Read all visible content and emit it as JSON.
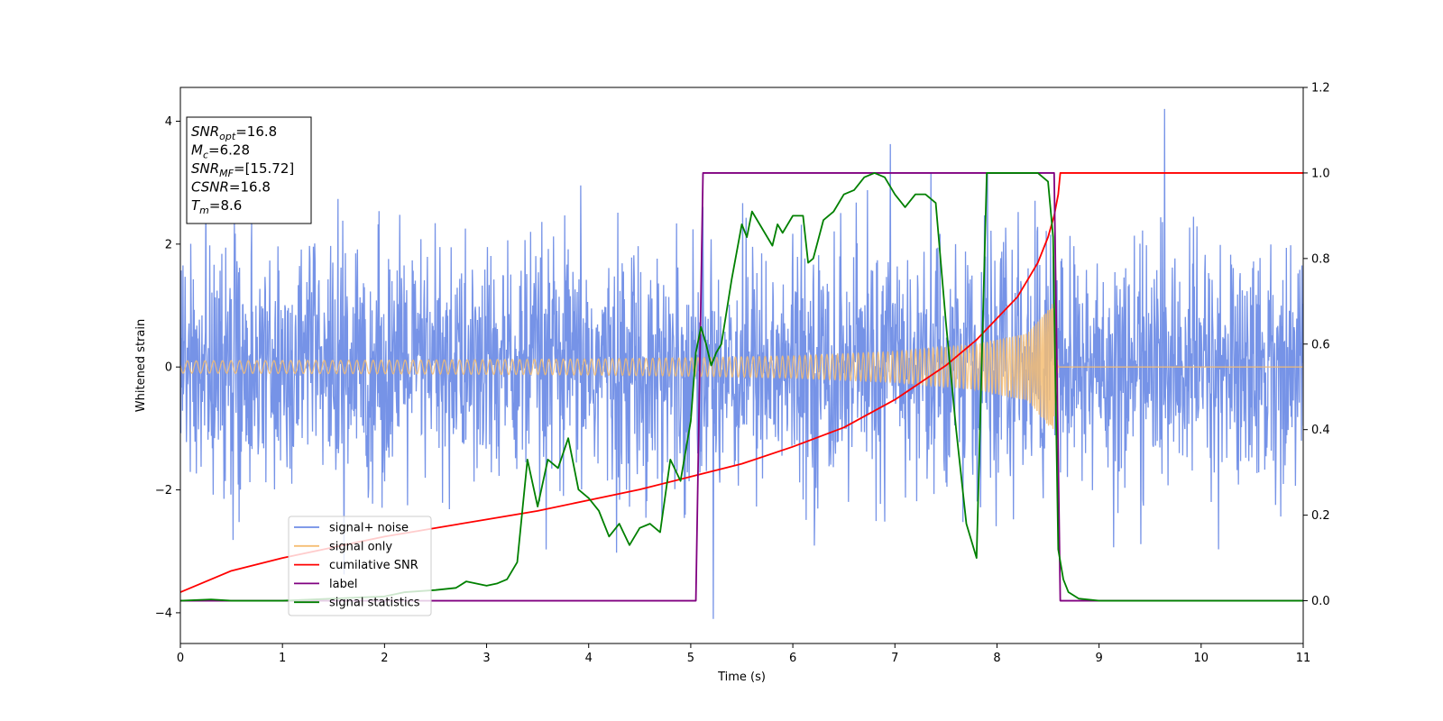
{
  "chart_data": {
    "type": "line",
    "title": "",
    "xlabel": "Time (s)",
    "ylabel": "Whitened strain",
    "y2label": "",
    "xlim": [
      0,
      11
    ],
    "ylim": [
      -4.5,
      4.55
    ],
    "y2lim": [
      -0.1,
      1.2
    ],
    "x_ticks": [
      0,
      1,
      2,
      3,
      4,
      5,
      6,
      7,
      8,
      9,
      10,
      11
    ],
    "y_ticks": [
      -4,
      -2,
      0,
      2,
      4
    ],
    "y2_ticks": [
      0.0,
      0.2,
      0.4,
      0.6,
      0.8,
      1.0,
      1.2
    ],
    "grid": false,
    "legend_position": "lower-left",
    "info_box": {
      "lines": [
        {
          "var": "SNR",
          "sub": "opt",
          "value": "=16.8"
        },
        {
          "var": "M",
          "sub": "c",
          "value": "=6.28"
        },
        {
          "var": "SNR",
          "sub": "MF",
          "value": "=[15.72]"
        },
        {
          "var": "CSNR",
          "sub": "",
          "value": "=16.8"
        },
        {
          "var": "T",
          "sub": "m",
          "value": "=8.6"
        }
      ]
    },
    "series": [
      {
        "name": "signal+ noise",
        "axis": "left",
        "color": "#6f8de6",
        "kind": "noisy",
        "description_points": "random noise, std ~1, spikes to about +/-4",
        "envelope_t": [
          0,
          2,
          4,
          5,
          6,
          7,
          7.8,
          8.3,
          8.55,
          8.6,
          11
        ],
        "envelope_amp": [
          0.1,
          0.11,
          0.13,
          0.15,
          0.18,
          0.25,
          0.37,
          0.55,
          0.9,
          0.0,
          0.0
        ]
      },
      {
        "name": "signal only",
        "axis": "left",
        "color": "#f5bd73",
        "kind": "chirp",
        "t_merge": 8.6,
        "envelope_t": [
          0,
          2,
          4,
          5,
          6,
          7,
          7.8,
          8.3,
          8.55,
          8.6,
          11
        ],
        "envelope_amp": [
          0.1,
          0.11,
          0.13,
          0.15,
          0.18,
          0.25,
          0.37,
          0.55,
          1.05,
          0.0,
          0.0
        ]
      },
      {
        "name": "cumilative SNR",
        "axis": "right",
        "color": "#ff0000",
        "x": [
          0,
          0.5,
          1,
          1.5,
          2,
          2.5,
          3,
          3.5,
          4,
          4.5,
          5,
          5.5,
          6,
          6.5,
          7,
          7.5,
          7.8,
          8.0,
          8.2,
          8.4,
          8.5,
          8.56,
          8.6,
          8.62,
          11
        ],
        "y": [
          0.02,
          0.07,
          0.1,
          0.125,
          0.15,
          0.17,
          0.19,
          0.21,
          0.235,
          0.26,
          0.29,
          0.32,
          0.36,
          0.405,
          0.47,
          0.55,
          0.61,
          0.66,
          0.71,
          0.79,
          0.85,
          0.9,
          0.95,
          1.0,
          1.0
        ]
      },
      {
        "name": "label",
        "axis": "right",
        "color": "#800080",
        "x": [
          0,
          5.05,
          5.12,
          8.56,
          8.62,
          11
        ],
        "y": [
          0.0,
          0.0,
          1.0,
          1.0,
          0.0,
          0.0
        ]
      },
      {
        "name": "signal statistics",
        "axis": "right",
        "color": "#008000",
        "x": [
          0,
          0.3,
          0.5,
          1.0,
          1.5,
          2.0,
          2.2,
          2.5,
          2.7,
          2.8,
          2.9,
          3.0,
          3.1,
          3.2,
          3.3,
          3.4,
          3.5,
          3.6,
          3.7,
          3.8,
          3.9,
          4.0,
          4.1,
          4.2,
          4.3,
          4.4,
          4.5,
          4.6,
          4.7,
          4.8,
          4.9,
          5.0,
          5.05,
          5.1,
          5.15,
          5.2,
          5.25,
          5.3,
          5.4,
          5.5,
          5.55,
          5.6,
          5.7,
          5.8,
          5.85,
          5.9,
          6.0,
          6.1,
          6.15,
          6.2,
          6.3,
          6.4,
          6.5,
          6.6,
          6.7,
          6.8,
          6.9,
          7.0,
          7.1,
          7.2,
          7.3,
          7.4,
          7.5,
          7.6,
          7.7,
          7.8,
          7.9,
          8.0,
          8.2,
          8.4,
          8.5,
          8.55,
          8.6,
          8.65,
          8.7,
          8.8,
          9.0,
          11
        ],
        "y": [
          0.0,
          0.003,
          0.0,
          0.0,
          0.005,
          0.01,
          0.02,
          0.025,
          0.03,
          0.045,
          0.04,
          0.035,
          0.04,
          0.05,
          0.09,
          0.33,
          0.22,
          0.33,
          0.31,
          0.38,
          0.26,
          0.24,
          0.21,
          0.15,
          0.18,
          0.13,
          0.17,
          0.18,
          0.16,
          0.33,
          0.28,
          0.42,
          0.58,
          0.64,
          0.6,
          0.55,
          0.58,
          0.6,
          0.75,
          0.88,
          0.85,
          0.91,
          0.87,
          0.83,
          0.88,
          0.86,
          0.9,
          0.9,
          0.79,
          0.8,
          0.89,
          0.91,
          0.95,
          0.96,
          0.99,
          1.0,
          0.99,
          0.95,
          0.92,
          0.95,
          0.95,
          0.93,
          0.65,
          0.4,
          0.18,
          0.1,
          1.0,
          1.0,
          1.0,
          1.0,
          0.98,
          0.85,
          0.12,
          0.05,
          0.02,
          0.005,
          0.0,
          0.0
        ]
      }
    ]
  }
}
